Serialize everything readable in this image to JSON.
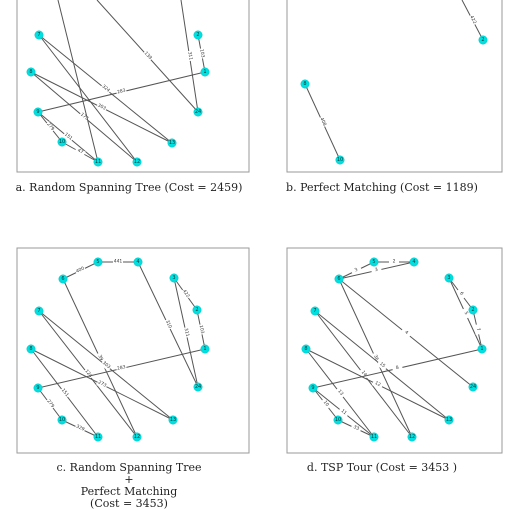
{
  "panels": [
    {
      "id": "a",
      "caption_lines": [
        "a. Random Spanning Tree (Cost = 2459)"
      ],
      "nodes": [
        "7",
        "2",
        "1",
        "8",
        "24",
        "9",
        "10",
        "11",
        "12",
        "13"
      ],
      "edges": [
        {
          "from": "7",
          "to": "12",
          "label": ""
        },
        {
          "from": "7",
          "to": "13",
          "label": "324"
        },
        {
          "from": "2",
          "to": "1",
          "label": "103"
        },
        {
          "from": "8",
          "to": "12",
          "label": "173"
        },
        {
          "from": "8",
          "to": "13",
          "label": "303"
        },
        {
          "from": "9",
          "to": "1",
          "label": "283"
        },
        {
          "from": "9",
          "to": "11",
          "label": "151"
        },
        {
          "from": "9",
          "to": "10",
          "label": "279"
        },
        {
          "from": "10",
          "to": "11",
          "label": "47"
        },
        {
          "from": "top-1",
          "to": "24",
          "label": "311"
        },
        {
          "from": "top-2",
          "to": "24",
          "label": "139"
        },
        {
          "from": "top-3",
          "to": "11",
          "label": ""
        }
      ]
    },
    {
      "id": "b",
      "caption_lines": [
        "b. Perfect Matching (Cost = 1189)"
      ],
      "nodes": [
        "2",
        "8",
        "10"
      ],
      "edges": [
        {
          "from": "8",
          "to": "10",
          "label": "408"
        },
        {
          "from": "top-b",
          "to": "2",
          "label": "422"
        }
      ]
    },
    {
      "id": "c",
      "caption_lines": [
        "c. Random Spanning Tree",
        "+",
        "Perfect Matching",
        "(Cost = 3453)"
      ],
      "nodes": [
        "5",
        "4",
        "6",
        "3",
        "2",
        "7",
        "1",
        "8",
        "24",
        "9",
        "13",
        "10",
        "11",
        "12"
      ],
      "edges": [
        {
          "from": "5",
          "to": "4",
          "label": "441"
        },
        {
          "from": "6",
          "to": "5",
          "label": "400"
        },
        {
          "from": "6",
          "to": "12",
          "label": "39"
        },
        {
          "from": "4",
          "to": "24",
          "label": "310"
        },
        {
          "from": "3",
          "to": "2",
          "label": "422"
        },
        {
          "from": "3",
          "to": "24",
          "label": "311"
        },
        {
          "from": "2",
          "to": "1",
          "label": "103"
        },
        {
          "from": "7",
          "to": "12",
          "label": "124"
        },
        {
          "from": "7",
          "to": "13",
          "label": "303"
        },
        {
          "from": "8",
          "to": "13",
          "label": "273"
        },
        {
          "from": "8",
          "to": "11",
          "label": "151"
        },
        {
          "from": "9",
          "to": "1",
          "label": "283"
        },
        {
          "from": "9",
          "to": "10",
          "label": "279"
        },
        {
          "from": "10",
          "to": "11",
          "label": "329"
        }
      ]
    },
    {
      "id": "d",
      "caption_lines": [
        "d. TSP Tour (Cost = 3453 )"
      ],
      "nodes": [
        "5",
        "4",
        "6",
        "3",
        "2",
        "7",
        "1",
        "8",
        "24",
        "9",
        "13",
        "10",
        "11",
        "12"
      ],
      "edges": [
        {
          "from": "5",
          "to": "4",
          "label": "2"
        },
        {
          "from": "6",
          "to": "5",
          "label": "3"
        },
        {
          "from": "6",
          "to": "4",
          "label": "3"
        },
        {
          "from": "6",
          "to": "24",
          "label": "4"
        },
        {
          "from": "6",
          "to": "12",
          "label": "36"
        },
        {
          "from": "3",
          "to": "2",
          "label": "6"
        },
        {
          "from": "3",
          "to": "1",
          "label": "5"
        },
        {
          "from": "2",
          "to": "1",
          "label": "7"
        },
        {
          "from": "7",
          "to": "12",
          "label": "14"
        },
        {
          "from": "7",
          "to": "13",
          "label": "15"
        },
        {
          "from": "8",
          "to": "13",
          "label": "12"
        },
        {
          "from": "9",
          "to": "1",
          "label": "8"
        },
        {
          "from": "9",
          "to": "10",
          "label": "10"
        },
        {
          "from": "9",
          "to": "11",
          "label": "11"
        },
        {
          "from": "10",
          "to": "11",
          "label": "33"
        },
        {
          "from": "8",
          "to": "11",
          "label": "13"
        }
      ]
    }
  ]
}
